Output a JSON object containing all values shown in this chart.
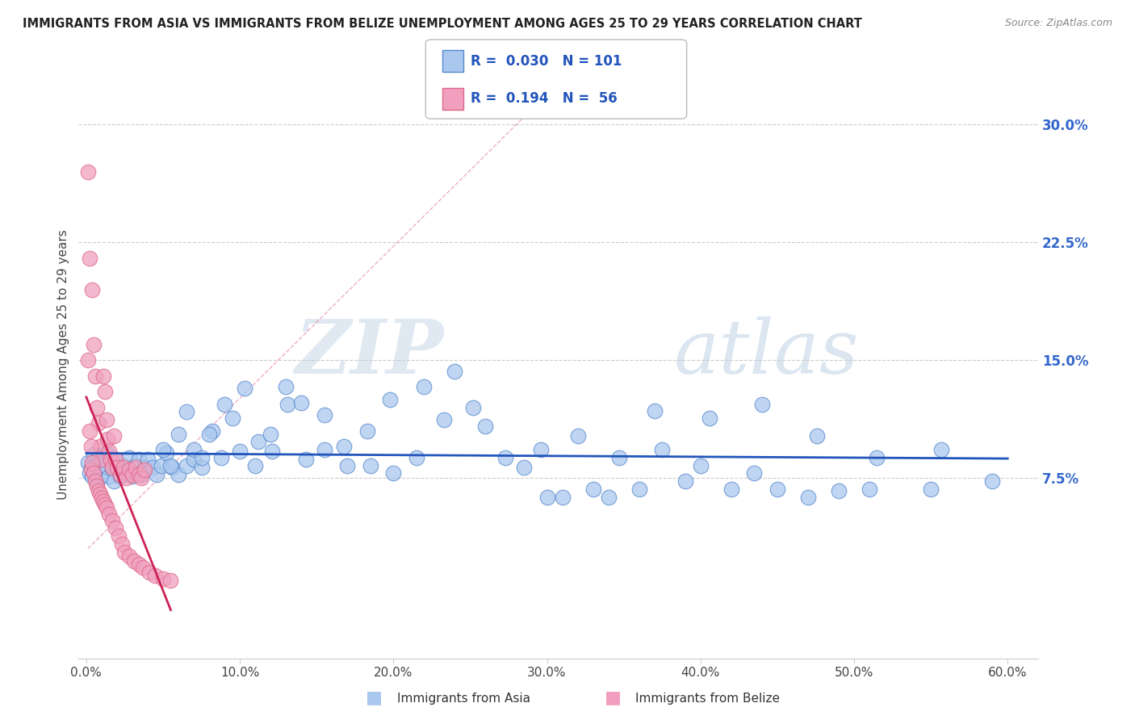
{
  "title": "IMMIGRANTS FROM ASIA VS IMMIGRANTS FROM BELIZE UNEMPLOYMENT AMONG AGES 25 TO 29 YEARS CORRELATION CHART",
  "source": "Source: ZipAtlas.com",
  "ylabel": "Unemployment Among Ages 25 to 29 years",
  "xlim": [
    -0.005,
    0.62
  ],
  "ylim": [
    -0.04,
    0.335
  ],
  "xticks": [
    0.0,
    0.1,
    0.2,
    0.3,
    0.4,
    0.5,
    0.6
  ],
  "xticklabels": [
    "0.0%",
    "10.0%",
    "20.0%",
    "30.0%",
    "40.0%",
    "50.0%",
    "60.0%"
  ],
  "yticks_right": [
    0.075,
    0.15,
    0.225,
    0.3
  ],
  "yticklabels_right": [
    "7.5%",
    "15.0%",
    "22.5%",
    "30.0%"
  ],
  "hlines": [
    0.075,
    0.15,
    0.225,
    0.3
  ],
  "asia_color": "#aac8ee",
  "asia_edge_color": "#5588cc",
  "belize_color": "#f0a0be",
  "belize_edge_color": "#dd6688",
  "trend_asia_color": "#2255bb",
  "trend_belize_color": "#cc2255",
  "dashed_line_color": "#e88aaa",
  "watermark_zip": "ZIP",
  "watermark_atlas": "atlas",
  "legend_R_asia": "0.030",
  "legend_N_asia": "101",
  "legend_R_belize": "0.194",
  "legend_N_belize": "56",
  "asia_x": [
    0.001,
    0.002,
    0.003,
    0.004,
    0.005,
    0.006,
    0.007,
    0.008,
    0.009,
    0.01,
    0.011,
    0.012,
    0.013,
    0.014,
    0.015,
    0.016,
    0.017,
    0.018,
    0.019,
    0.02,
    0.022,
    0.024,
    0.026,
    0.028,
    0.03,
    0.032,
    0.034,
    0.036,
    0.038,
    0.04,
    0.043,
    0.046,
    0.049,
    0.052,
    0.056,
    0.06,
    0.065,
    0.07,
    0.075,
    0.082,
    0.088,
    0.095,
    0.103,
    0.112,
    0.121,
    0.131,
    0.143,
    0.155,
    0.168,
    0.183,
    0.198,
    0.215,
    0.233,
    0.252,
    0.273,
    0.296,
    0.32,
    0.347,
    0.375,
    0.406,
    0.44,
    0.476,
    0.515,
    0.557,
    0.05,
    0.055,
    0.06,
    0.065,
    0.07,
    0.075,
    0.08,
    0.09,
    0.1,
    0.11,
    0.12,
    0.13,
    0.14,
    0.155,
    0.17,
    0.185,
    0.2,
    0.22,
    0.24,
    0.26,
    0.285,
    0.31,
    0.34,
    0.37,
    0.4,
    0.435,
    0.47,
    0.51,
    0.55,
    0.59,
    0.3,
    0.33,
    0.36,
    0.39,
    0.42,
    0.45,
    0.49
  ],
  "asia_y": [
    0.085,
    0.078,
    0.082,
    0.076,
    0.09,
    0.083,
    0.072,
    0.088,
    0.081,
    0.077,
    0.083,
    0.087,
    0.091,
    0.082,
    0.076,
    0.086,
    0.081,
    0.073,
    0.087,
    0.082,
    0.076,
    0.083,
    0.079,
    0.088,
    0.076,
    0.083,
    0.087,
    0.077,
    0.082,
    0.087,
    0.082,
    0.077,
    0.083,
    0.091,
    0.082,
    0.077,
    0.083,
    0.087,
    0.082,
    0.105,
    0.088,
    0.113,
    0.132,
    0.098,
    0.092,
    0.122,
    0.087,
    0.115,
    0.095,
    0.105,
    0.125,
    0.088,
    0.112,
    0.12,
    0.088,
    0.093,
    0.102,
    0.088,
    0.093,
    0.113,
    0.122,
    0.102,
    0.088,
    0.093,
    0.093,
    0.083,
    0.103,
    0.117,
    0.093,
    0.088,
    0.103,
    0.122,
    0.092,
    0.083,
    0.103,
    0.133,
    0.123,
    0.093,
    0.083,
    0.083,
    0.078,
    0.133,
    0.143,
    0.108,
    0.082,
    0.063,
    0.063,
    0.118,
    0.083,
    0.078,
    0.063,
    0.068,
    0.068,
    0.073,
    0.063,
    0.068,
    0.068,
    0.073,
    0.068,
    0.068,
    0.067
  ],
  "belize_x": [
    0.001,
    0.002,
    0.003,
    0.004,
    0.005,
    0.006,
    0.007,
    0.008,
    0.009,
    0.01,
    0.011,
    0.012,
    0.013,
    0.014,
    0.015,
    0.016,
    0.017,
    0.018,
    0.019,
    0.02,
    0.022,
    0.024,
    0.026,
    0.028,
    0.03,
    0.032,
    0.034,
    0.036,
    0.038,
    0.001,
    0.002,
    0.003,
    0.004,
    0.005,
    0.006,
    0.007,
    0.008,
    0.009,
    0.01,
    0.011,
    0.012,
    0.013,
    0.015,
    0.017,
    0.019,
    0.021,
    0.023,
    0.025,
    0.028,
    0.031,
    0.034,
    0.037,
    0.041,
    0.045,
    0.05,
    0.055
  ],
  "belize_y": [
    0.27,
    0.215,
    0.08,
    0.195,
    0.16,
    0.14,
    0.12,
    0.11,
    0.095,
    0.087,
    0.14,
    0.13,
    0.112,
    0.1,
    0.092,
    0.087,
    0.082,
    0.102,
    0.087,
    0.082,
    0.077,
    0.082,
    0.075,
    0.08,
    0.077,
    0.082,
    0.077,
    0.075,
    0.08,
    0.15,
    0.105,
    0.095,
    0.085,
    0.078,
    0.073,
    0.07,
    0.067,
    0.065,
    0.062,
    0.06,
    0.058,
    0.056,
    0.052,
    0.048,
    0.043,
    0.038,
    0.033,
    0.028,
    0.025,
    0.022,
    0.02,
    0.018,
    0.015,
    0.013,
    0.011,
    0.01
  ]
}
